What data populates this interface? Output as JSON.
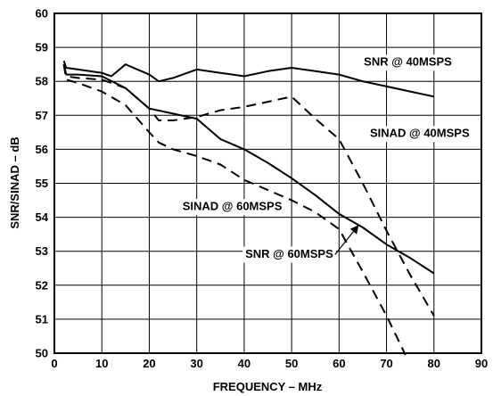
{
  "chart_data": {
    "type": "line",
    "xlabel": "FREQUENCY – MHz",
    "ylabel": "SNR/SINAD – dB",
    "xlim": [
      0,
      90
    ],
    "ylim": [
      50,
      60
    ],
    "xticks": [
      0,
      10,
      20,
      30,
      40,
      50,
      60,
      70,
      80,
      90
    ],
    "yticks": [
      50,
      51,
      52,
      53,
      54,
      55,
      56,
      57,
      58,
      59,
      60
    ],
    "grid": true,
    "series": [
      {
        "name": "SNR @ 40MSPS",
        "style": "solid",
        "x": [
          2,
          2.5,
          5,
          10,
          12,
          15,
          20,
          22,
          25,
          30,
          35,
          40,
          45,
          50,
          55,
          60,
          65,
          70,
          75,
          80
        ],
        "y": [
          58.6,
          58.4,
          58.35,
          58.25,
          58.15,
          58.5,
          58.2,
          58.0,
          58.1,
          58.35,
          58.25,
          58.15,
          58.3,
          58.4,
          58.3,
          58.2,
          58.0,
          57.85,
          57.7,
          57.55
        ]
      },
      {
        "name": "SINAD @ 40MSPS",
        "style": "dashed",
        "x": [
          2,
          2.5,
          5,
          10,
          15,
          20,
          22,
          25,
          30,
          35,
          40,
          45,
          50,
          55,
          60,
          65,
          70,
          75,
          80
        ],
        "y": [
          58.5,
          58.15,
          58.1,
          58.05,
          57.8,
          57.2,
          56.85,
          56.85,
          56.95,
          57.15,
          57.25,
          57.4,
          57.55,
          56.9,
          56.3,
          55.0,
          53.6,
          52.3,
          51.1
        ]
      },
      {
        "name": "SNR @ 60MSPS",
        "style": "solid",
        "x": [
          2,
          2.5,
          5,
          10,
          15,
          20,
          25,
          30,
          35,
          40,
          45,
          50,
          55,
          60,
          65,
          70,
          75,
          80
        ],
        "y": [
          58.5,
          58.2,
          58.2,
          58.15,
          57.8,
          57.2,
          57.05,
          56.9,
          56.3,
          56.0,
          55.6,
          55.15,
          54.65,
          54.1,
          53.7,
          53.2,
          52.8,
          52.35
        ]
      },
      {
        "name": "SINAD @ 60MSPS",
        "style": "dashed",
        "x": [
          2,
          2.5,
          5,
          10,
          15,
          20,
          22,
          25,
          30,
          35,
          40,
          45,
          50,
          55,
          60,
          65,
          70,
          74
        ],
        "y": [
          58.5,
          58.05,
          57.95,
          57.7,
          57.3,
          56.5,
          56.2,
          56.0,
          55.8,
          55.55,
          55.1,
          54.8,
          54.5,
          54.15,
          53.65,
          52.4,
          51.1,
          49.95
        ]
      }
    ],
    "annotations": [
      {
        "text": "SNR @ 40MSPS",
        "x": 74.5,
        "y": 58.55
      },
      {
        "text": "SINAD @ 40MSPS",
        "x": 77,
        "y": 56.45
      },
      {
        "text": "SINAD @ 60MSPS",
        "x": 37.5,
        "y": 54.3
      },
      {
        "text": "SNR @ 60MSPS",
        "x": 49.5,
        "y": 52.9
      }
    ]
  }
}
